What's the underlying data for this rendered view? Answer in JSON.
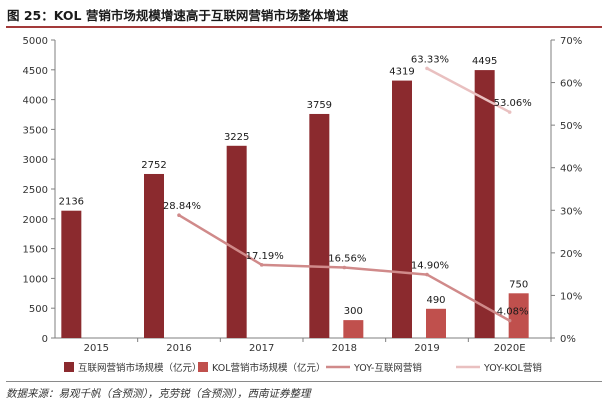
{
  "figure": {
    "title": "图 25：KOL 营销市场规模增速高于互联网营销市场整体增速",
    "source": "数据来源：易观千帆（含预测），克劳锐（含预测），西南证券整理"
  },
  "chart_data": {
    "type": "bar",
    "categories": [
      "2015",
      "2016",
      "2017",
      "2018",
      "2019",
      "2020E"
    ],
    "y_left": {
      "lim": [
        0,
        5000
      ],
      "ticks": [
        0,
        500,
        1000,
        1500,
        2000,
        2500,
        3000,
        3500,
        4000,
        4500,
        5000
      ]
    },
    "y_right": {
      "lim": [
        0,
        70
      ],
      "ticks": [
        "0%",
        "10%",
        "20%",
        "30%",
        "40%",
        "50%",
        "60%",
        "70%"
      ]
    },
    "grid": false,
    "legend_position": "bottom",
    "series": [
      {
        "name": "互联网营销市场规模（亿元）",
        "type": "bar",
        "axis": "left",
        "color": "#8b2a2e",
        "values": [
          2136,
          2752,
          3225,
          3759,
          4319,
          4495
        ],
        "labels": [
          "2136",
          "2752",
          "3225",
          "3759",
          "4319",
          "4495"
        ]
      },
      {
        "name": "KOL营销市场规模（亿元）",
        "type": "bar",
        "axis": "left",
        "color": "#c0504d",
        "values": [
          null,
          null,
          null,
          300,
          490,
          750
        ],
        "labels": [
          "",
          "",
          "",
          "300",
          "490",
          "750"
        ]
      },
      {
        "name": "YOY-互联网营销",
        "type": "line",
        "axis": "right",
        "color": "#d08a8a",
        "values": [
          null,
          28.84,
          17.19,
          16.56,
          14.9,
          4.08
        ],
        "labels": [
          "",
          "28.84%",
          "17.19%",
          "16.56%",
          "14.90%",
          "4.08%"
        ]
      },
      {
        "name": "YOY-KOL营销",
        "type": "line",
        "axis": "right",
        "color": "#e9c0c0",
        "values": [
          null,
          null,
          null,
          null,
          63.33,
          53.06
        ],
        "labels": [
          "",
          "",
          "",
          "",
          "63.33%",
          "53.06%"
        ]
      }
    ]
  }
}
